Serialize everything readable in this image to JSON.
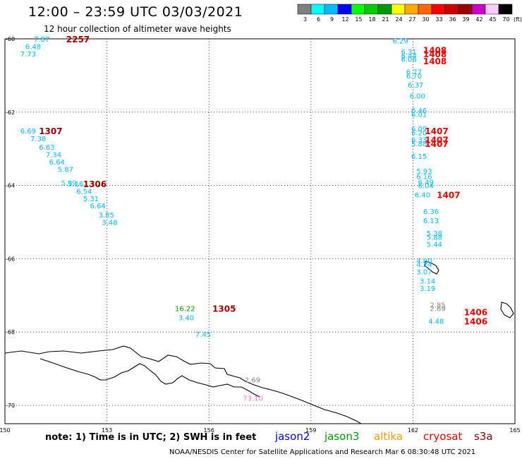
{
  "header": {
    "title": "12:00 – 23:59 UTC 03/03/2021",
    "subtitle": "12 hour collection of altimeter wave heights"
  },
  "colorbar": {
    "labels": [
      "3",
      "6",
      "9",
      "12",
      "15",
      "18",
      "21",
      "24",
      "27",
      "30",
      "33",
      "36",
      "39",
      "42",
      "45",
      "70"
    ],
    "unit": "(ft)",
    "colors": [
      "#7f7f7f",
      "#00ffff",
      "#00bbff",
      "#0000ff",
      "#00ff00",
      "#00cc00",
      "#009900",
      "#ffff00",
      "#ffaa00",
      "#ff6600",
      "#ff0000",
      "#cc0000",
      "#990000",
      "#cc00cc",
      "#ffccff",
      "#000000"
    ]
  },
  "footer": {
    "note": "note:  1) Time is in UTC;  2) SWH is in feet",
    "credit": "NOAA/NESDIS Center for Satellite Applications and Research    Mar  6 08:30:48 UTC 2021",
    "satellites": [
      {
        "name": "jason2",
        "color": "#0000dd"
      },
      {
        "name": "jason3",
        "color": "#009900"
      },
      {
        "name": "altika",
        "color": "#ff9900"
      },
      {
        "name": "cryosat",
        "color": "#ee0000"
      },
      {
        "name": "s3a",
        "color": "#880000"
      }
    ]
  },
  "chart_data": {
    "type": "scatter",
    "title": "12:00 – 23:59 UTC 03/03/2021",
    "subtitle": "12 hour collection of altimeter wave heights",
    "unit": "ft",
    "xlim": [
      150,
      165
    ],
    "ylim": [
      -70.5,
      -60
    ],
    "x_ticks": [
      "150",
      "153",
      "156",
      "159",
      "162",
      "165"
    ],
    "y_ticks": [
      "-60",
      "-62",
      "-64",
      "-66",
      "-68",
      "-70"
    ],
    "x_tick_values": [
      150,
      153,
      156,
      159,
      162,
      165
    ],
    "y_tick_values": [
      -60,
      -62,
      -64,
      -66,
      -68,
      -70
    ],
    "grid": true,
    "series": [
      {
        "color": "#00bbff",
        "points": [
          {
            "lon": 150.85,
            "lat": -60.0,
            "value": "7.87"
          },
          {
            "lon": 150.6,
            "lat": -60.2,
            "value": "6.48"
          },
          {
            "lon": 150.45,
            "lat": -60.4,
            "value": "7.73"
          },
          {
            "lon": 150.45,
            "lat": -62.5,
            "value": "6.69"
          },
          {
            "lon": 150.75,
            "lat": -62.72,
            "value": "7.38"
          },
          {
            "lon": 151.0,
            "lat": -62.95,
            "value": "6.63"
          },
          {
            "lon": 151.2,
            "lat": -63.15,
            "value": "7.34"
          },
          {
            "lon": 151.3,
            "lat": -63.35,
            "value": "6.64"
          },
          {
            "lon": 151.55,
            "lat": -63.55,
            "value": "5.87"
          },
          {
            "lon": 151.85,
            "lat": -63.95,
            "value": "5.16"
          },
          {
            "lon": 152.1,
            "lat": -64.15,
            "value": "6.54"
          },
          {
            "lon": 152.3,
            "lat": -64.35,
            "value": "5.31"
          },
          {
            "lon": 152.5,
            "lat": -64.55,
            "value": "6.64"
          },
          {
            "lon": 152.75,
            "lat": -64.8,
            "value": "3.85"
          },
          {
            "lon": 152.85,
            "lat": -65.0,
            "value": "3.48"
          },
          {
            "lon": 155.1,
            "lat": -67.6,
            "value": "3.40"
          },
          {
            "lon": 155.6,
            "lat": -68.05,
            "value": "7.45"
          },
          {
            "lon": 161.4,
            "lat": -60.05,
            "value": "6.29"
          },
          {
            "lon": 161.65,
            "lat": -60.35,
            "value": "6.31"
          },
          {
            "lon": 161.65,
            "lat": -60.45,
            "value": "6.44"
          },
          {
            "lon": 161.65,
            "lat": -60.55,
            "value": "6.06"
          },
          {
            "lon": 161.8,
            "lat": -60.9,
            "value": "6.77"
          },
          {
            "lon": 161.8,
            "lat": -61.0,
            "value": "6.70"
          },
          {
            "lon": 161.85,
            "lat": -61.25,
            "value": "6.37"
          },
          {
            "lon": 161.9,
            "lat": -61.55,
            "value": "6.00"
          },
          {
            "lon": 161.95,
            "lat": -61.95,
            "value": "6.46"
          },
          {
            "lon": 161.95,
            "lat": -62.05,
            "value": "6.01"
          },
          {
            "lon": 161.95,
            "lat": -62.45,
            "value": "6.09"
          },
          {
            "lon": 161.95,
            "lat": -62.55,
            "value": "6.20"
          },
          {
            "lon": 161.95,
            "lat": -62.75,
            "value": "6.33"
          },
          {
            "lon": 161.95,
            "lat": -62.85,
            "value": "5.88"
          },
          {
            "lon": 161.95,
            "lat": -63.2,
            "value": "6.15"
          },
          {
            "lon": 162.1,
            "lat": -63.6,
            "value": "5.93"
          },
          {
            "lon": 162.1,
            "lat": -63.75,
            "value": "6.16"
          },
          {
            "lon": 162.15,
            "lat": -63.9,
            "value": "6.49"
          },
          {
            "lon": 162.15,
            "lat": -64.0,
            "value": "6.04"
          },
          {
            "lon": 162.05,
            "lat": -64.25,
            "value": "6.40"
          },
          {
            "lon": 162.3,
            "lat": -64.7,
            "value": "6.36"
          },
          {
            "lon": 162.3,
            "lat": -64.95,
            "value": "6.13"
          },
          {
            "lon": 162.4,
            "lat": -65.3,
            "value": "5.38"
          },
          {
            "lon": 162.4,
            "lat": -65.4,
            "value": "5.88"
          },
          {
            "lon": 162.4,
            "lat": -65.6,
            "value": "5.44"
          },
          {
            "lon": 162.1,
            "lat": -66.05,
            "value": "4.00"
          },
          {
            "lon": 162.1,
            "lat": -66.15,
            "value": "4.24"
          },
          {
            "lon": 162.1,
            "lat": -66.35,
            "value": "3.07"
          },
          {
            "lon": 162.2,
            "lat": -66.6,
            "value": "3.14"
          },
          {
            "lon": 162.2,
            "lat": -66.8,
            "value": "3.19"
          },
          {
            "lon": 162.45,
            "lat": -67.7,
            "value": "4.48"
          }
        ]
      },
      {
        "color": "#00dddd",
        "points": [
          {
            "lon": 151.65,
            "lat": -63.92,
            "value": "5.99"
          }
        ]
      },
      {
        "color": "#009900",
        "points": [
          {
            "lon": 155.0,
            "lat": -67.35,
            "value": "16.22"
          }
        ]
      },
      {
        "color": "#888888",
        "points": [
          {
            "lon": 157.05,
            "lat": -69.3,
            "value": "2.69"
          },
          {
            "lon": 162.5,
            "lat": -67.25,
            "value": "2.85"
          },
          {
            "lon": 162.5,
            "lat": -67.35,
            "value": "2.69"
          }
        ]
      },
      {
        "color": "#ff77dd",
        "points": [
          {
            "lon": 157.0,
            "lat": -69.8,
            "value": "73.10"
          }
        ]
      }
    ],
    "time_labels": [
      {
        "lon": 151.8,
        "lat": -60.0,
        "text": "2257",
        "color": "#990000"
      },
      {
        "lon": 151.0,
        "lat": -62.5,
        "text": "1307",
        "color": "#990000"
      },
      {
        "lon": 152.3,
        "lat": -63.95,
        "text": "1306",
        "color": "#990000"
      },
      {
        "lon": 156.1,
        "lat": -67.35,
        "text": "1305",
        "color": "#990000"
      },
      {
        "lon": 162.3,
        "lat": -60.3,
        "text": "1408",
        "color": "#ee0000"
      },
      {
        "lon": 162.3,
        "lat": -60.4,
        "text": "1408",
        "color": "#ee0000"
      },
      {
        "lon": 162.3,
        "lat": -60.6,
        "text": "1408",
        "color": "#ee0000"
      },
      {
        "lon": 162.35,
        "lat": -62.5,
        "text": "1407",
        "color": "#ee0000"
      },
      {
        "lon": 162.35,
        "lat": -62.75,
        "text": "1407",
        "color": "#ee0000"
      },
      {
        "lon": 162.35,
        "lat": -62.85,
        "text": "1407",
        "color": "#ee0000"
      },
      {
        "lon": 162.7,
        "lat": -64.25,
        "text": "1407",
        "color": "#ee0000"
      },
      {
        "lon": 163.5,
        "lat": -67.45,
        "text": "1406",
        "color": "#ee0000"
      },
      {
        "lon": 163.5,
        "lat": -67.7,
        "text": "1406",
        "color": "#ee0000"
      }
    ]
  }
}
